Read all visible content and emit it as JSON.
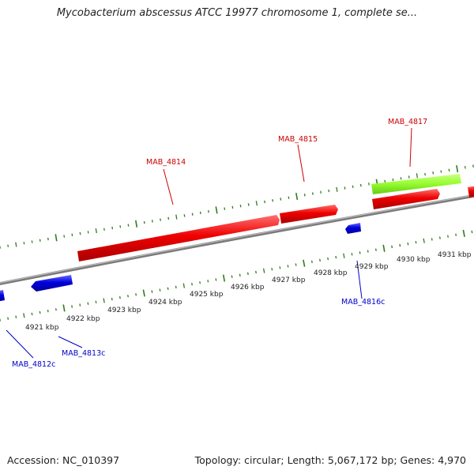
{
  "title": "Mycobacterium abscessus ATCC 19977 chromosome 1, complete se...",
  "footer": {
    "accession": "Accession: NC_010397",
    "topology": "Topology: circular; Length: 5,067,172 bp; Genes: 4,970"
  },
  "colors": {
    "forward_gene": "#ee0000",
    "reverse_gene": "#0000dd",
    "other_feature": "#99ff33",
    "backbone": "#888888",
    "tick": "#2e7d1c",
    "forward_label": "#cc0000",
    "reverse_label": "#0000cc"
  },
  "scale_labels": [
    "4921 kbp",
    "4922 kbp",
    "4923 kbp",
    "4924 kbp",
    "4925 kbp",
    "4926 kbp",
    "4927 kbp",
    "4928 kbp",
    "4929 kbp",
    "4930 kbp",
    "4931 kbp"
  ],
  "gene_labels": {
    "forward": [
      "MAB_4814",
      "MAB_4815",
      "MAB_4817"
    ],
    "reverse": [
      "MAB_4812c",
      "MAB_4813c",
      "MAB_4816c"
    ]
  }
}
